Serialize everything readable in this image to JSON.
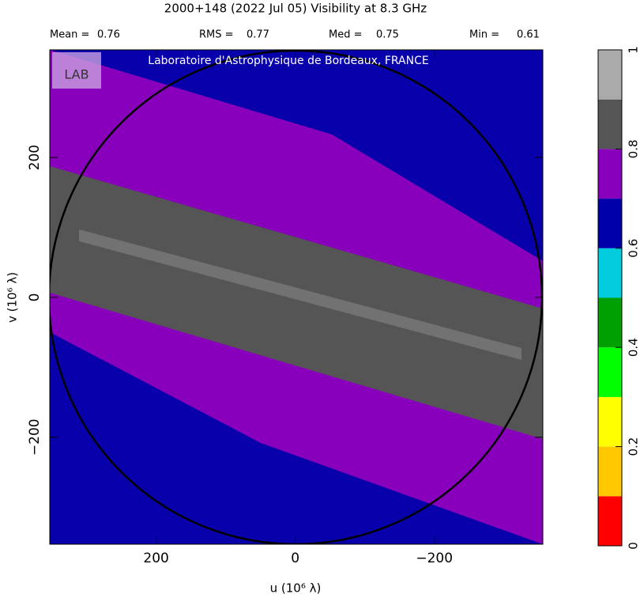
{
  "chart_data": {
    "type": "heatmap",
    "title": "2000+148   (2022 Jul 05)   Visibility at  8.3 GHz",
    "stats": [
      {
        "label": "Mean =",
        "value": 0.76
      },
      {
        "label": "RMS =",
        "value": 0.77
      },
      {
        "label": "Med =",
        "value": 0.75
      },
      {
        "label": "Min =",
        "value": 0.61
      }
    ],
    "annotation": "Laboratoire d'Astrophysique de Bordeaux, FRANCE",
    "logo_text": "LAB",
    "xlabel": "u  (10⁶ λ)",
    "ylabel": "v  (10⁶ λ)",
    "xlim": [
      353,
      -356
    ],
    "ylim": [
      -353,
      354
    ],
    "xticks": [
      200,
      0,
      {
        "value": -200,
        "label": "−200"
      }
    ],
    "yticks": [
      {
        "value": -200,
        "label": "−200"
      },
      0,
      200
    ],
    "colorbar": {
      "bins": [
        0,
        0.1,
        0.2,
        0.3,
        0.4,
        0.5,
        0.6,
        0.7,
        0.8,
        0.9,
        1
      ],
      "colors": [
        "#ff0000",
        "#ffc800",
        "#ffff00",
        "#00ff00",
        "#00a000",
        "#00ccdd",
        "#0000aa",
        "#8800bb",
        "#555555",
        "#aaaaaa"
      ],
      "ticks": [
        0,
        0.2,
        0.4,
        0.6,
        0.8,
        1
      ]
    }
  }
}
